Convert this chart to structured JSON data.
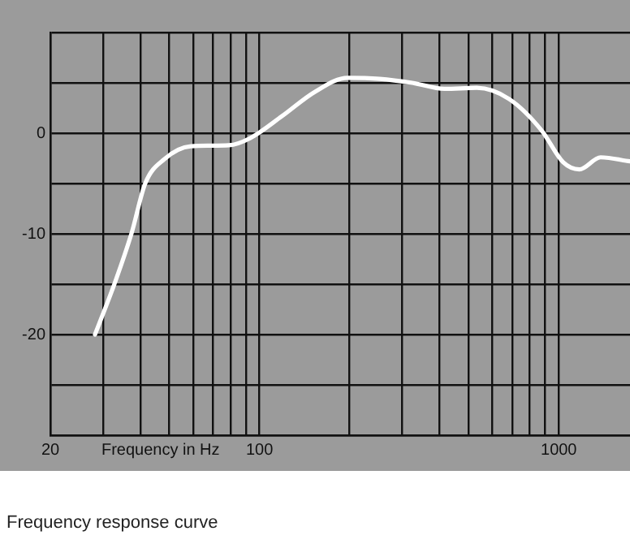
{
  "chart_data": {
    "type": "line",
    "xlabel": "Frequency in Hz",
    "annotations": [
      "Frequency response curve"
    ],
    "x": [
      28.2,
      33,
      37.4,
      41.5,
      48,
      59,
      79,
      93,
      119,
      153,
      197,
      252,
      324,
      415,
      532,
      682,
      875,
      1035,
      1172,
      1380,
      1730
    ],
    "series": [
      {
        "color": "#ffffff",
        "values": [
          -20,
          -14.7,
          -9.9,
          -5,
          -2.6,
          -1.3,
          -1.2,
          -0.5,
          1.7,
          4.1,
          5.5,
          5.4,
          5,
          4.4,
          4.5,
          3.4,
          0.3,
          -2.9,
          -3.6,
          -2.4,
          -2.8
        ]
      }
    ],
    "log": "x",
    "xlim": [
      20,
      1730
    ],
    "xticks": [
      20,
      {
        "value": 30,
        "label": null
      },
      {
        "value": 40,
        "label": null
      },
      {
        "value": 50,
        "label": null
      },
      {
        "value": 60,
        "label": null
      },
      {
        "value": 70,
        "label": null
      },
      {
        "value": 80,
        "label": null
      },
      {
        "value": 90,
        "label": null
      },
      100,
      {
        "value": 200,
        "label": null
      },
      {
        "value": 300,
        "label": null
      },
      {
        "value": 400,
        "label": null
      },
      {
        "value": 500,
        "label": null
      },
      {
        "value": 600,
        "label": null
      },
      {
        "value": 700,
        "label": null
      },
      {
        "value": 800,
        "label": null
      },
      {
        "value": 900,
        "label": null
      },
      1000
    ],
    "ylim": [
      -30,
      10
    ],
    "yticks": [
      {
        "value": -30,
        "label": null
      },
      {
        "value": -25,
        "label": null
      },
      -20,
      {
        "value": -15,
        "label": null
      },
      -10,
      {
        "value": -5,
        "label": null
      },
      0,
      {
        "value": 5,
        "label": null
      },
      {
        "value": 10,
        "label": null
      }
    ],
    "grid": true,
    "marker": "none",
    "line_style": "solid"
  }
}
